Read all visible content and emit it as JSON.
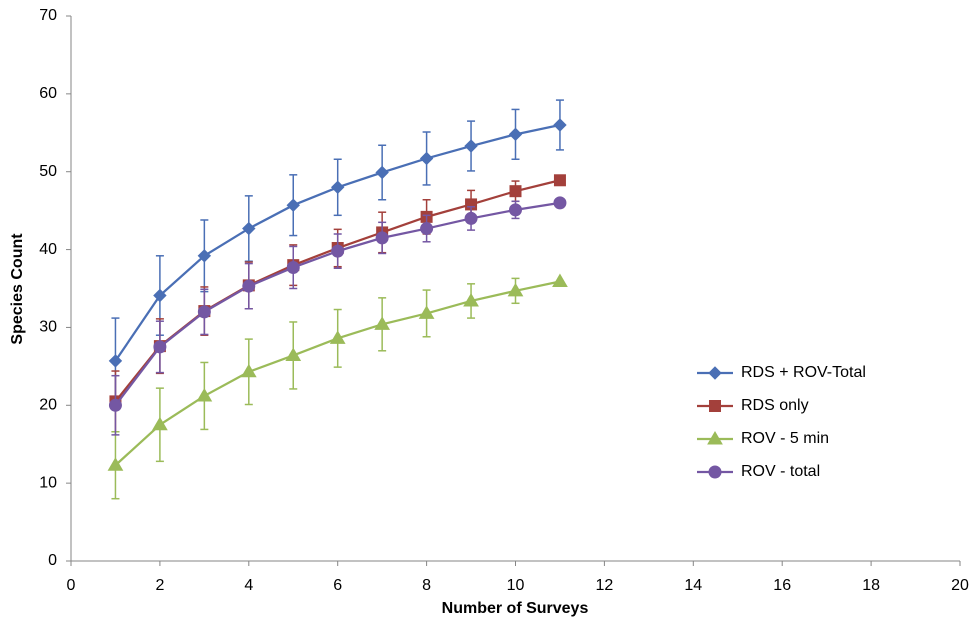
{
  "chart_data": {
    "type": "line",
    "x_label": "Number of Surveys",
    "y_label": "Species Count",
    "x": [
      1,
      2,
      3,
      4,
      5,
      6,
      7,
      8,
      9,
      10,
      11
    ],
    "series": [
      {
        "name": "RDS + ROV-Total",
        "color": "#4a6fb5",
        "marker": "diamond",
        "values": [
          25.7,
          34.1,
          39.2,
          42.7,
          45.7,
          48.0,
          49.9,
          51.7,
          53.3,
          54.8,
          56.0
        ],
        "errors": [
          5.5,
          5.1,
          4.6,
          4.2,
          3.9,
          3.6,
          3.5,
          3.4,
          3.2,
          3.2,
          3.2
        ]
      },
      {
        "name": "RDS only",
        "color": "#a3403b",
        "marker": "square",
        "values": [
          20.5,
          27.6,
          32.1,
          35.4,
          38.0,
          40.2,
          42.2,
          44.2,
          45.8,
          47.5,
          48.9
        ],
        "errors": [
          3.9,
          3.5,
          3.1,
          3.0,
          2.6,
          2.4,
          2.6,
          2.2,
          1.8,
          1.3,
          0
        ]
      },
      {
        "name": "ROV - 5 min",
        "color": "#9bbb59",
        "marker": "triangle",
        "values": [
          12.3,
          17.5,
          21.2,
          24.3,
          26.4,
          28.6,
          30.4,
          31.8,
          33.4,
          34.7,
          35.9
        ],
        "errors": [
          4.3,
          4.7,
          4.3,
          4.2,
          4.3,
          3.7,
          3.4,
          3.0,
          2.2,
          1.6,
          0
        ]
      },
      {
        "name": "ROV - total",
        "color": "#7457a3",
        "marker": "circle",
        "values": [
          20.0,
          27.5,
          32.0,
          35.3,
          37.7,
          39.8,
          41.5,
          42.7,
          44.0,
          45.1,
          46.0
        ],
        "errors": [
          3.8,
          3.3,
          2.9,
          2.9,
          2.7,
          2.2,
          2.0,
          1.7,
          1.5,
          1.1,
          0
        ]
      }
    ],
    "xlim": [
      0,
      20
    ],
    "xticks": [
      0,
      2,
      4,
      6,
      8,
      10,
      12,
      14,
      16,
      18,
      20
    ],
    "ylim": [
      0,
      70
    ],
    "yticks": [
      0,
      10,
      20,
      30,
      40,
      50,
      60,
      70
    ],
    "grid": false,
    "legend": "right"
  }
}
